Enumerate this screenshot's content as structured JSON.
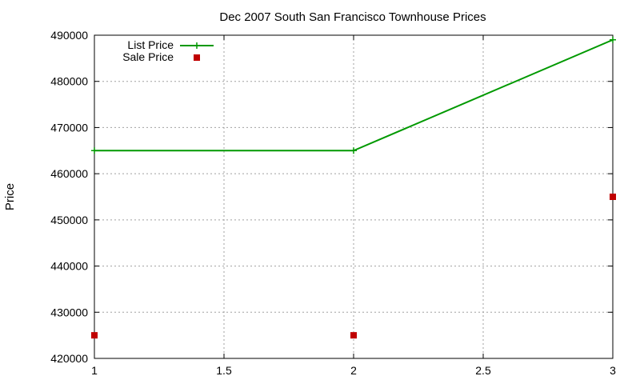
{
  "chart_data": {
    "type": "line",
    "title": "Dec 2007 South San Francisco Townhouse Prices",
    "xlabel": "",
    "ylabel": "Price",
    "xlim": [
      1,
      3
    ],
    "ylim": [
      420000,
      490000
    ],
    "x_ticks": [
      1,
      1.5,
      2,
      2.5,
      3
    ],
    "x_tick_labels": [
      "1",
      "1.5",
      "2",
      "2.5",
      "3"
    ],
    "y_ticks": [
      420000,
      430000,
      440000,
      450000,
      460000,
      470000,
      480000,
      490000
    ],
    "y_tick_labels": [
      "420000",
      "430000",
      "440000",
      "450000",
      "460000",
      "470000",
      "480000",
      "490000"
    ],
    "grid": true,
    "legend_position": "top-left",
    "series": [
      {
        "name": "List Price",
        "style": "lines+points",
        "marker": "plus",
        "color": "#009900",
        "x": [
          1,
          2,
          3
        ],
        "y": [
          465000,
          465000,
          489000
        ]
      },
      {
        "name": "Sale Price",
        "style": "points",
        "marker": "square",
        "color": "#c00000",
        "x": [
          1,
          2,
          3
        ],
        "y": [
          425000,
          425000,
          455000
        ]
      }
    ]
  }
}
